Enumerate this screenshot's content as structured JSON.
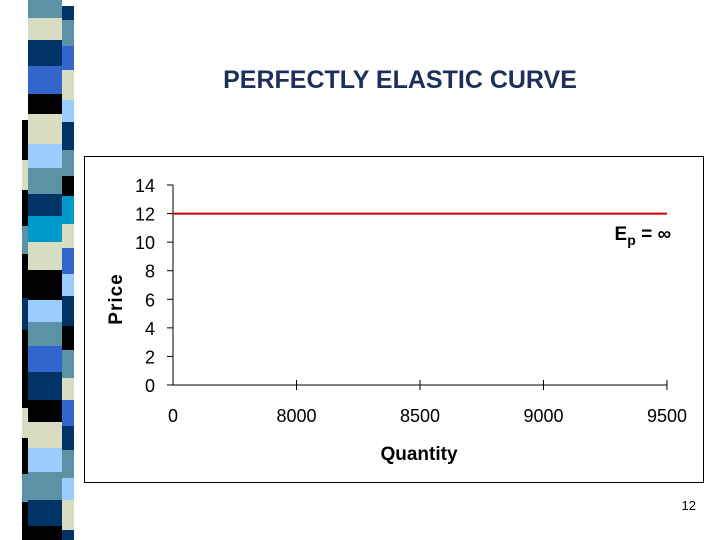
{
  "slide": {
    "title": "PERFECTLY ELASTIC CURVE",
    "page_number": "12"
  },
  "decoration": {
    "stripe_colors": [
      "#5b93a6",
      "#003366",
      "#d8dcc0",
      "#3366cc",
      "#000000",
      "#99ccff",
      "#0099cc"
    ]
  },
  "chart_data": {
    "type": "line",
    "title": "",
    "xlabel": "Quantity",
    "ylabel": "Price",
    "categories": [
      "0",
      "8000",
      "8500",
      "9000",
      "9500"
    ],
    "series": [
      {
        "values": [
          12,
          12,
          12,
          12,
          12
        ],
        "color": "#cc0000"
      }
    ],
    "yticks": [
      0,
      2,
      4,
      6,
      8,
      10,
      12,
      14
    ],
    "ylim": [
      0,
      14
    ],
    "grid": false,
    "legend": "none",
    "annotation": {
      "base": "E",
      "subscript": "p",
      "rest": " = ∞"
    }
  }
}
